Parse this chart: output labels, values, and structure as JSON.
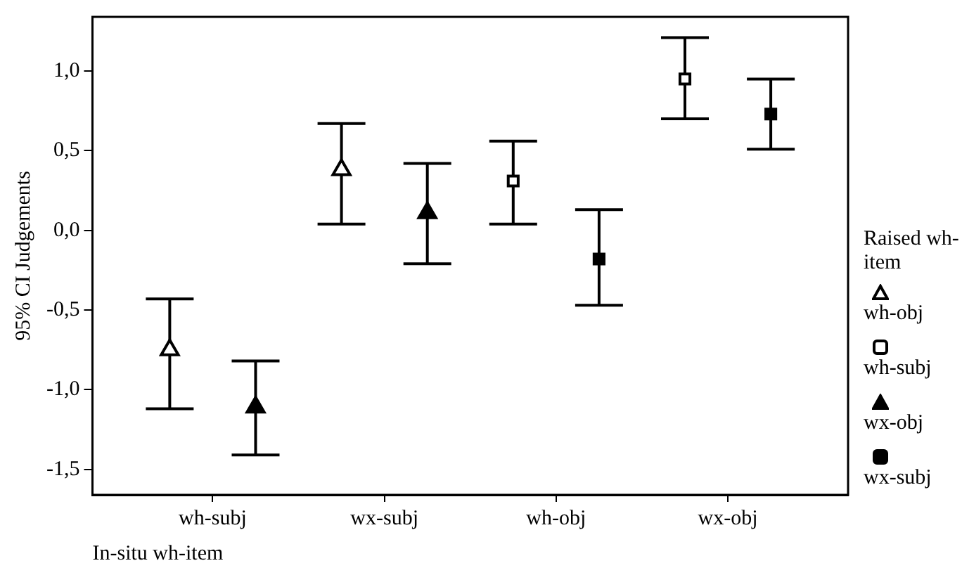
{
  "chart_data": {
    "type": "scatter",
    "xlabel": "In-situ wh-item",
    "ylabel": "95% CI Judgements",
    "legend_title": "Raised wh-item",
    "categories": [
      "wh-subj",
      "wx-subj",
      "wh-obj",
      "wx-obj"
    ],
    "ylim": [
      -1.66,
      1.34
    ],
    "yticks": [
      {
        "value": 1,
        "label": "1,0"
      },
      {
        "value": 0.5,
        "label": "0,5"
      },
      {
        "value": 0,
        "label": "0,0"
      },
      {
        "value": -0.5,
        "label": "-0,5"
      },
      {
        "value": -1,
        "label": "-1,0"
      },
      {
        "value": -1.5,
        "label": "-1,5"
      }
    ],
    "grid": false,
    "legend": "right",
    "series": [
      {
        "name": "wh-obj",
        "color": "#ffffff",
        "marker": "triangle",
        "values": [
          -0.75,
          0.38,
          null,
          null
        ],
        "errors": [
          [
            -1.12,
            -0.43
          ],
          [
            0.04,
            0.67
          ],
          null,
          null
        ]
      },
      {
        "name": "wh-subj",
        "color": "#ffffff",
        "marker": "square",
        "values": [
          null,
          null,
          0.31,
          0.95
        ],
        "errors": [
          null,
          null,
          [
            0.04,
            0.56
          ],
          [
            0.7,
            1.21
          ]
        ]
      },
      {
        "name": "wx-obj",
        "color": "#000000",
        "marker": "triangle",
        "values": [
          -1.11,
          0.11,
          null,
          null
        ],
        "errors": [
          [
            -1.41,
            -0.82
          ],
          [
            -0.21,
            0.42
          ],
          null,
          null
        ]
      },
      {
        "name": "wx-subj",
        "color": "#000000",
        "marker": "square",
        "values": [
          null,
          null,
          -0.18,
          0.73
        ],
        "errors": [
          null,
          null,
          [
            -0.47,
            0.13
          ],
          [
            0.51,
            0.95
          ]
        ]
      }
    ]
  }
}
